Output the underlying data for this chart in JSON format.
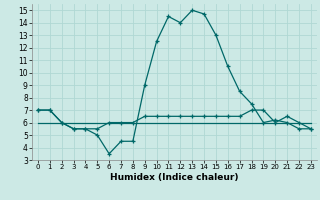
{
  "xlabel": "Humidex (Indice chaleur)",
  "xlim": [
    -0.5,
    23.5
  ],
  "ylim": [
    3,
    15.5
  ],
  "xticks": [
    0,
    1,
    2,
    3,
    4,
    5,
    6,
    7,
    8,
    9,
    10,
    11,
    12,
    13,
    14,
    15,
    16,
    17,
    18,
    19,
    20,
    21,
    22,
    23
  ],
  "yticks": [
    3,
    4,
    5,
    6,
    7,
    8,
    9,
    10,
    11,
    12,
    13,
    14,
    15
  ],
  "bg_color": "#cce9e5",
  "line_color": "#006868",
  "grid_color": "#b0d8d4",
  "line1_x": [
    0,
    1,
    2,
    3,
    4,
    5,
    6,
    7,
    8,
    9,
    10,
    11,
    12,
    13,
    14,
    15,
    16,
    17,
    18,
    19,
    20,
    21,
    22,
    23
  ],
  "line1_y": [
    7,
    7,
    6,
    5.5,
    5.5,
    5,
    3.5,
    4.5,
    4.5,
    9,
    12.5,
    14.5,
    14,
    15,
    14.7,
    13,
    10.5,
    8.5,
    7.5,
    6,
    6.2,
    6,
    5.5,
    5.5
  ],
  "line2_x": [
    0,
    1,
    2,
    3,
    4,
    5,
    6,
    7,
    8,
    9,
    10,
    11,
    12,
    13,
    14,
    15,
    16,
    17,
    18,
    19,
    20,
    21,
    22,
    23
  ],
  "line2_y": [
    7,
    7,
    6,
    5.5,
    5.5,
    5.5,
    6,
    6,
    6,
    6.5,
    6.5,
    6.5,
    6.5,
    6.5,
    6.5,
    6.5,
    6.5,
    6.5,
    7,
    7,
    6,
    6.5,
    6,
    5.5
  ],
  "line3_x": [
    0,
    23
  ],
  "line3_y": [
    6,
    6
  ],
  "tick_fontsize": 5.5,
  "xlabel_fontsize": 6.5
}
